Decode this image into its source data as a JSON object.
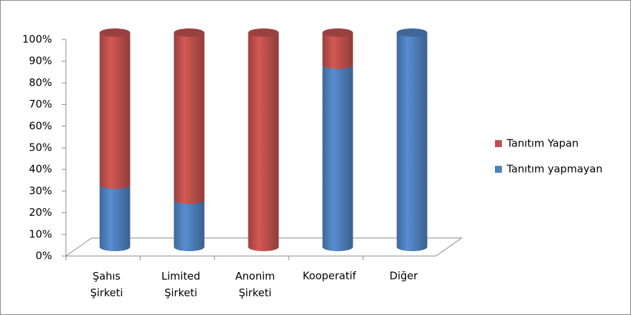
{
  "chart_data": {
    "type": "stacked-cylinder",
    "categories": [
      "Şahıs Şirketi",
      "Limited Şirketi",
      "Anonim Şirketi",
      "Kooperatif",
      "Diğer"
    ],
    "series": [
      {
        "name": "Tanıtım yapmayan",
        "color": "#4f81bd",
        "values": [
          29,
          22,
          0,
          85,
          100
        ]
      },
      {
        "name": "Tanıtım Yapan",
        "color": "#c0504d",
        "values": [
          71,
          78,
          100,
          15,
          0
        ]
      }
    ],
    "ylim": [
      0,
      100
    ],
    "yticks": [
      {
        "value": 0,
        "label": "0%"
      },
      {
        "value": 10,
        "label": "10%"
      },
      {
        "value": 20,
        "label": "20%"
      },
      {
        "value": 30,
        "label": "30%"
      },
      {
        "value": 40,
        "label": "40%"
      },
      {
        "value": 50,
        "label": "50%"
      },
      {
        "value": 60,
        "label": "60%"
      },
      {
        "value": 70,
        "label": "70%"
      },
      {
        "value": 80,
        "label": "80%"
      },
      {
        "value": 90,
        "label": "90%"
      },
      {
        "value": 100,
        "label": "100%"
      }
    ],
    "legend": "right"
  }
}
